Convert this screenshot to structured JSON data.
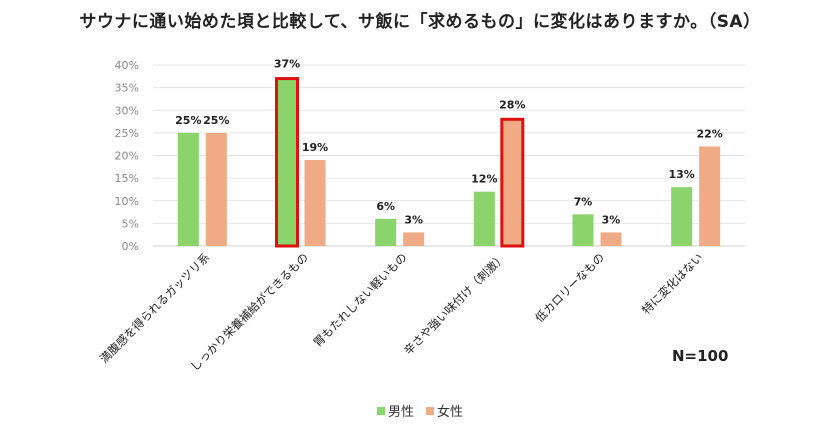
{
  "chart_data": {
    "type": "bar",
    "title": "サウナに通い始めた頃と比較して、サ飯に「求めるもの」に変化はありますか。（SA）",
    "categories": [
      "満腹感を得られるガッツリ系",
      "しっかり栄養補給ができるもの",
      "胃もたれしない軽いもの",
      "辛さや強い味付け（刺激）",
      "低カロリーなもの",
      "特に変化はない"
    ],
    "series": [
      {
        "name": "男性",
        "color": "#8bd36b",
        "values": [
          25,
          37,
          6,
          12,
          7,
          13
        ],
        "labels": [
          "25%",
          "37%",
          "6%",
          "12%",
          "7%",
          "13%"
        ],
        "highlighted_index": 1
      },
      {
        "name": "女性",
        "color": "#f0aa85",
        "values": [
          25,
          19,
          3,
          28,
          3,
          22
        ],
        "labels": [
          "25%",
          "19%",
          "3%",
          "28%",
          "3%",
          "22%"
        ],
        "highlighted_index": 3
      }
    ],
    "ylim": [
      0,
      40
    ],
    "yticks": [
      "0%",
      "5%",
      "10%",
      "15%",
      "20%",
      "25%",
      "30%",
      "35%",
      "40%"
    ],
    "highlight_color": "#e01010",
    "grid": true,
    "legend_position": "bottom",
    "note": "N=100"
  }
}
